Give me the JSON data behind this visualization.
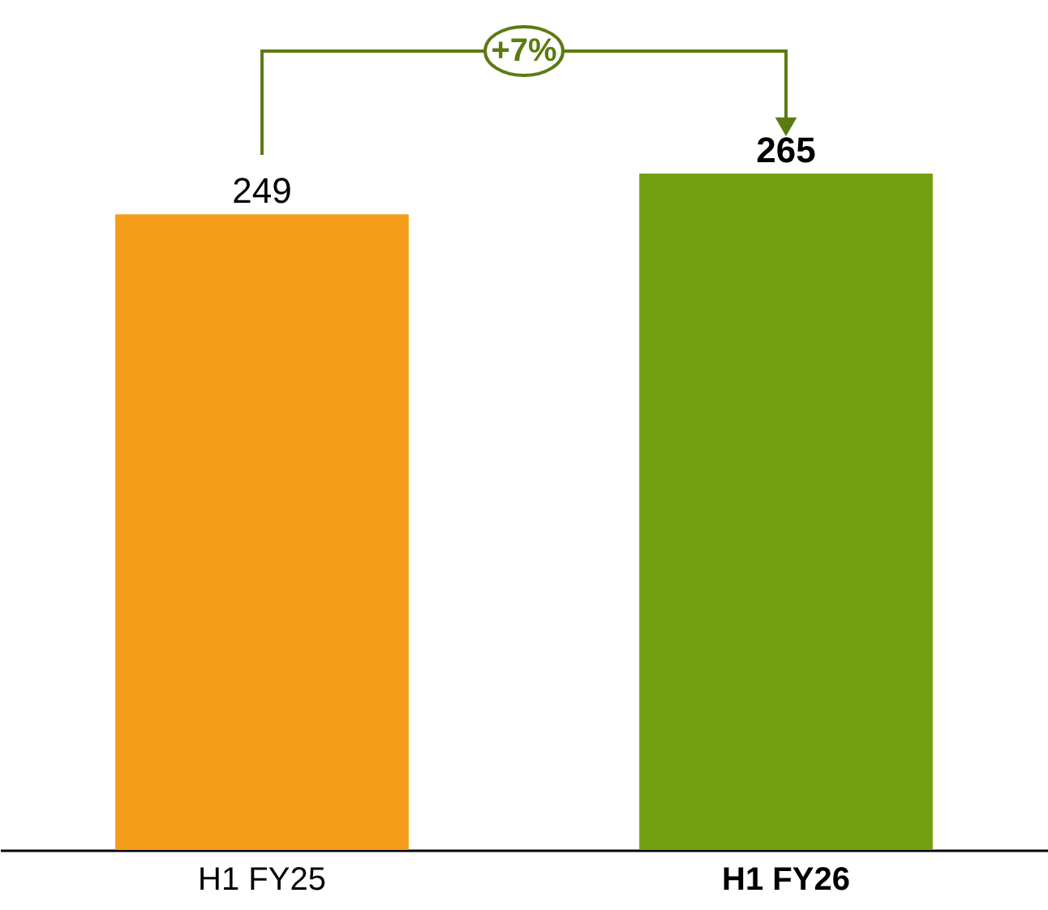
{
  "chart_data": {
    "type": "bar",
    "categories": [
      "H1 FY25",
      "H1 FY26"
    ],
    "values": [
      249,
      265
    ],
    "colors": [
      "#f59c1a",
      "#72a012"
    ],
    "ylim": [
      0,
      333
    ],
    "data_labels": true,
    "grid": false,
    "legend": false,
    "annotations": [
      "+7%"
    ]
  }
}
